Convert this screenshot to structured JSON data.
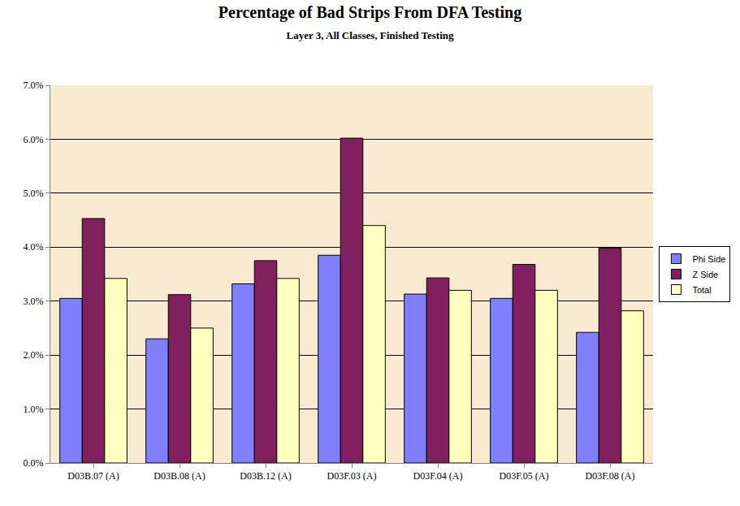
{
  "chart_data": {
    "type": "bar",
    "title": "Percentage of Bad Strips From DFA Testing",
    "subtitle": "Layer 3, All Classes, Finished Testing",
    "categories": [
      "D03B.07 (A)",
      "D03B.08 (A)",
      "D03B.12 (A)",
      "D03F.03 (A)",
      "D03F.04 (A)",
      "D03F.05 (A)",
      "D03F.08 (A)"
    ],
    "series": [
      {
        "name": "Phi Side",
        "color": "#8080ff",
        "values": [
          3.05,
          2.3,
          3.32,
          3.85,
          3.13,
          3.05,
          2.42
        ]
      },
      {
        "name": "Z Side",
        "color": "#80205f",
        "values": [
          4.53,
          3.12,
          3.75,
          6.02,
          3.43,
          3.68,
          3.98
        ]
      },
      {
        "name": "Total",
        "color": "#ffffc0",
        "values": [
          3.42,
          2.5,
          3.42,
          4.4,
          3.2,
          3.2,
          2.82
        ]
      }
    ],
    "ylim": [
      0,
      7
    ],
    "yticks": [
      {
        "value": 0,
        "label": "0.0%"
      },
      {
        "value": 1,
        "label": "1.0%"
      },
      {
        "value": 2,
        "label": "2.0%"
      },
      {
        "value": 3,
        "label": "3.0%"
      },
      {
        "value": 4,
        "label": "4.0%"
      },
      {
        "value": 5,
        "label": "5.0%"
      },
      {
        "value": 6,
        "label": "6.0%"
      },
      {
        "value": 7,
        "label": "7.0%"
      }
    ],
    "grid": true,
    "legend": "right"
  }
}
